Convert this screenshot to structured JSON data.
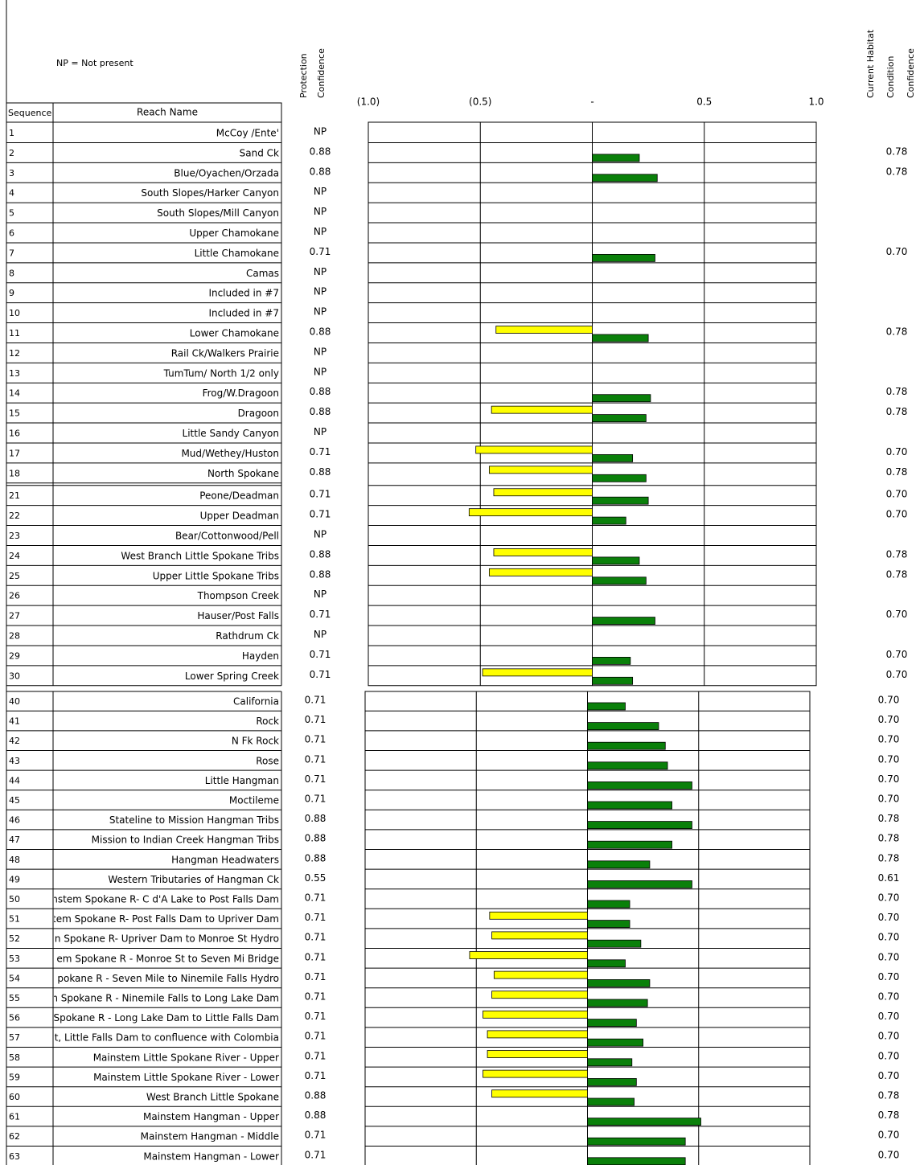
{
  "header": {
    "note": "NP = Not present",
    "sequence_header": "Sequence",
    "reach_header": "Reach Name",
    "protection_header": [
      "Protection",
      "Confidence"
    ],
    "habitat_header": [
      "Current Habitat",
      "Condition",
      "Confidence"
    ]
  },
  "chart_data": [
    {
      "type": "bar",
      "orientation": "horizontal",
      "xlim": [
        -1,
        1
      ],
      "xticks": [
        {
          "value": -1,
          "label": "(1.0)"
        },
        {
          "value": -0.5,
          "label": "(0.5)"
        },
        {
          "value": 0,
          "label": "-"
        },
        0.5,
        {
          "value": 1,
          "label": "1.0"
        }
      ],
      "sequence": [
        1,
        2,
        3,
        4,
        5,
        6,
        7,
        8,
        9,
        10,
        11,
        12,
        13,
        14,
        15,
        16,
        17,
        18,
        21,
        22,
        23,
        24,
        25,
        26,
        27,
        28,
        29,
        30
      ],
      "categories": [
        "McCoy /Ente'",
        "Sand Ck",
        "Blue/Oyachen/Orzada",
        "South Slopes/Harker Canyon",
        "South Slopes/Mill Canyon",
        "Upper Chamokane",
        "Little Chamokane",
        "Camas",
        "Included in #7",
        "Included in #7",
        "Lower Chamokane",
        "Rail Ck/Walkers Prairie",
        "TumTum/ North 1/2 only",
        "Frog/W.Dragoon",
        "Dragoon",
        "Little Sandy Canyon",
        "Mud/Wethey/Huston",
        "North Spokane",
        "Peone/Deadman",
        "Upper Deadman",
        "Bear/Cottonwood/Pell",
        "West Branch Little Spokane Tribs",
        "Upper Little Spokane Tribs",
        "Thompson Creek",
        "Hauser/Post Falls",
        "Rathdrum Ck",
        "Hayden",
        "Lower Spring Creek"
      ],
      "protection_confidence": [
        "NP",
        "0.88",
        "0.88",
        "NP",
        "NP",
        "NP",
        "0.71",
        "NP",
        "NP",
        "NP",
        "0.88",
        "NP",
        "NP",
        "0.88",
        "0.88",
        "NP",
        "0.71",
        "0.88",
        "0.71",
        "0.71",
        "NP",
        "0.88",
        "0.88",
        "NP",
        "0.71",
        "NP",
        "0.71",
        "0.71"
      ],
      "habitat_confidence": [
        null,
        "0.78",
        "0.78",
        null,
        null,
        null,
        "0.70",
        null,
        null,
        null,
        "0.78",
        null,
        null,
        "0.78",
        "0.78",
        null,
        "0.70",
        "0.78",
        "0.70",
        "0.70",
        null,
        "0.78",
        "0.78",
        null,
        "0.70",
        null,
        "0.70",
        "0.70"
      ],
      "series": [
        {
          "color": "#ffff00",
          "values": [
            null,
            null,
            null,
            null,
            null,
            null,
            null,
            null,
            null,
            null,
            -0.43,
            null,
            null,
            null,
            -0.45,
            null,
            -0.52,
            -0.46,
            -0.44,
            -0.55,
            null,
            -0.44,
            -0.46,
            null,
            null,
            null,
            null,
            -0.49
          ]
        },
        {
          "color": "#0a800a",
          "values": [
            null,
            0.21,
            0.29,
            null,
            null,
            null,
            0.28,
            null,
            null,
            null,
            0.25,
            null,
            null,
            0.26,
            0.24,
            null,
            0.18,
            0.24,
            0.25,
            0.15,
            null,
            0.21,
            0.24,
            null,
            0.28,
            null,
            0.17,
            0.18
          ]
        }
      ]
    },
    {
      "type": "bar",
      "orientation": "horizontal",
      "xlim": [
        -1,
        1
      ],
      "sequence": [
        40,
        41,
        42,
        43,
        44,
        45,
        46,
        47,
        48,
        49,
        50,
        51,
        52,
        53,
        54,
        55,
        56,
        57,
        58,
        59,
        60,
        61,
        62,
        63
      ],
      "categories": [
        "California",
        "Rock",
        "N Fk Rock",
        "Rose",
        "Little Hangman",
        "Moctileme",
        "Stateline to Mission Hangman Tribs",
        "Mission to Indian Creek Hangman Tribs",
        "Hangman Headwaters",
        "Western Tributaries of Hangman Ck",
        "nstem Spokane R- C d'A Lake to Post Falls Dam",
        "tem Spokane R-  Post Falls Dam to Upriver Dam",
        "n Spokane R- Upriver Dam to Monroe St Hydro",
        "em Spokane R - Monroe St to Seven Mi Bridge",
        "pokane R - Seven Mile to Ninemile Falls Hydro",
        "n Spokane R - Ninemile Falls to Long Lake Dam",
        "Spokane R - Long Lake Dam to Little Falls Dam",
        "lt, Little Falls Dam to confluence with Colombia",
        "Mainstem Little Spokane River - Upper",
        "Mainstem Little Spokane River - Lower",
        "West Branch Little Spokane",
        "Mainstem Hangman - Upper",
        "Mainstem Hangman - Middle",
        "Mainstem Hangman - Lower"
      ],
      "protection_confidence": [
        "0.71",
        "0.71",
        "0.71",
        "0.71",
        "0.71",
        "0.71",
        "0.88",
        "0.88",
        "0.88",
        "0.55",
        "0.71",
        "0.71",
        "0.71",
        "0.71",
        "0.71",
        "0.71",
        "0.71",
        "0.71",
        "0.71",
        "0.71",
        "0.88",
        "0.88",
        "0.71",
        "0.71"
      ],
      "habitat_confidence": [
        "0.70",
        "0.70",
        "0.70",
        "0.70",
        "0.70",
        "0.70",
        "0.78",
        "0.78",
        "0.78",
        "0.61",
        "0.70",
        "0.70",
        "0.70",
        "0.70",
        "0.70",
        "0.70",
        "0.70",
        "0.70",
        "0.70",
        "0.70",
        "0.78",
        "0.78",
        "0.70",
        "0.70"
      ],
      "series": [
        {
          "color": "#ffff00",
          "values": [
            null,
            null,
            null,
            null,
            null,
            null,
            null,
            null,
            null,
            null,
            null,
            -0.44,
            -0.43,
            -0.53,
            -0.42,
            -0.43,
            -0.47,
            -0.45,
            -0.45,
            -0.47,
            -0.43,
            null,
            null,
            null
          ]
        },
        {
          "color": "#0a800a",
          "values": [
            0.17,
            0.32,
            0.35,
            0.36,
            0.47,
            0.38,
            0.47,
            0.38,
            0.28,
            0.47,
            0.19,
            0.19,
            0.24,
            0.17,
            0.28,
            0.27,
            0.22,
            0.25,
            0.2,
            0.22,
            0.21,
            0.51,
            0.44,
            0.44
          ]
        }
      ]
    }
  ]
}
